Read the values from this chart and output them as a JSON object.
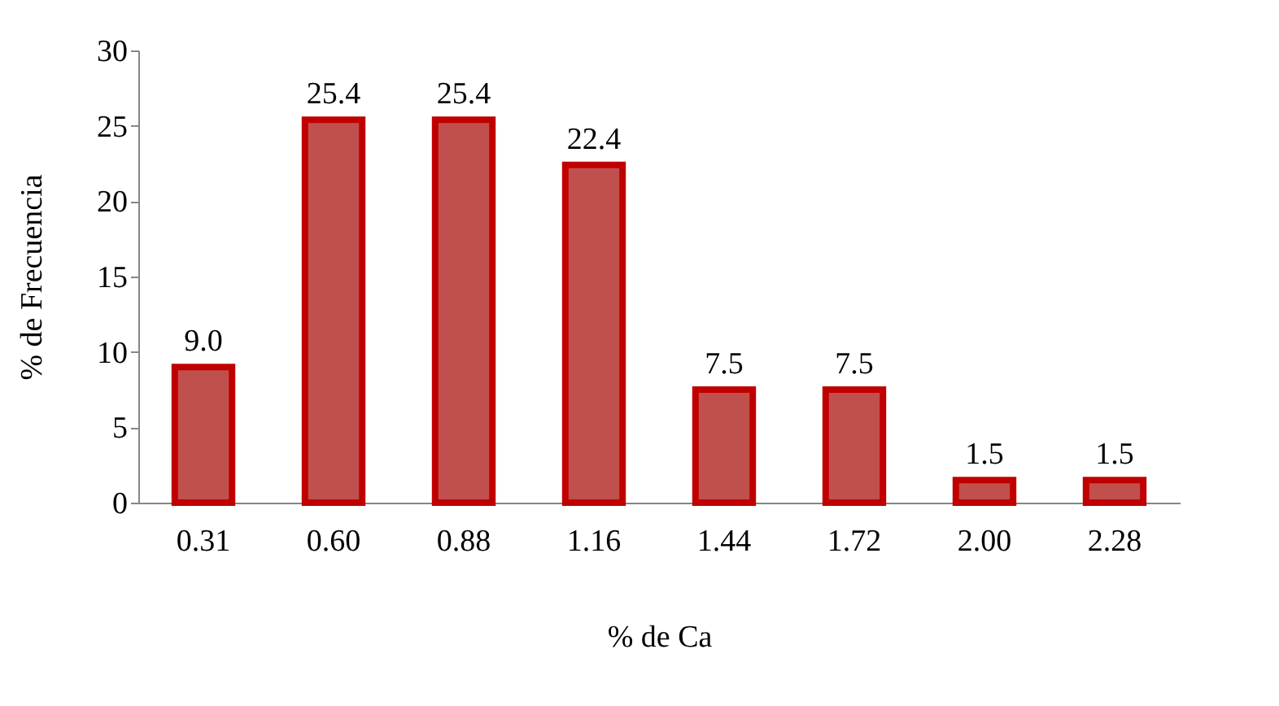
{
  "chart_data": {
    "type": "bar",
    "xlabel": "% de Ca",
    "ylabel": "% de Frecuencia",
    "categories": [
      "0.31",
      "0.60",
      "0.88",
      "1.16",
      "1.44",
      "1.72",
      "2.00",
      "2.28"
    ],
    "values": [
      9.0,
      25.4,
      25.4,
      22.4,
      7.5,
      7.5,
      1.5,
      1.5
    ],
    "value_labels": [
      "9.0",
      "25.4",
      "25.4",
      "22.4",
      "7.5",
      "7.5",
      "1.5",
      "1.5"
    ],
    "color": "#c0504d",
    "ylim": [
      0,
      30
    ],
    "yticks": [
      0,
      5,
      10,
      15,
      20,
      25,
      30
    ],
    "grid": false
  }
}
